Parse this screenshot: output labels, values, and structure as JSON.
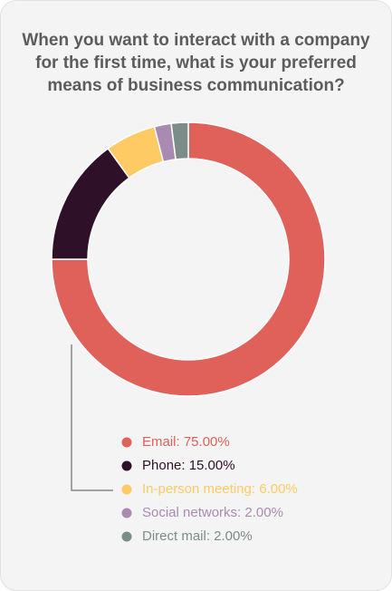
{
  "chart_data": {
    "type": "pie",
    "donut": true,
    "title": "When you want to interact with a company for the first time, what is your preferred means of business communication?",
    "values": [
      75,
      15,
      6,
      2,
      2
    ],
    "value_labels": [
      "Email: 75.00%",
      "Phone: 15.00%",
      "In-person meeting: 6.00%",
      "Social networks: 2.00%",
      "Direct mail: 2.00%"
    ],
    "colors": [
      "#e0605a",
      "#2f1029",
      "#fdca64",
      "#a98bb2",
      "#7b8d89"
    ]
  }
}
